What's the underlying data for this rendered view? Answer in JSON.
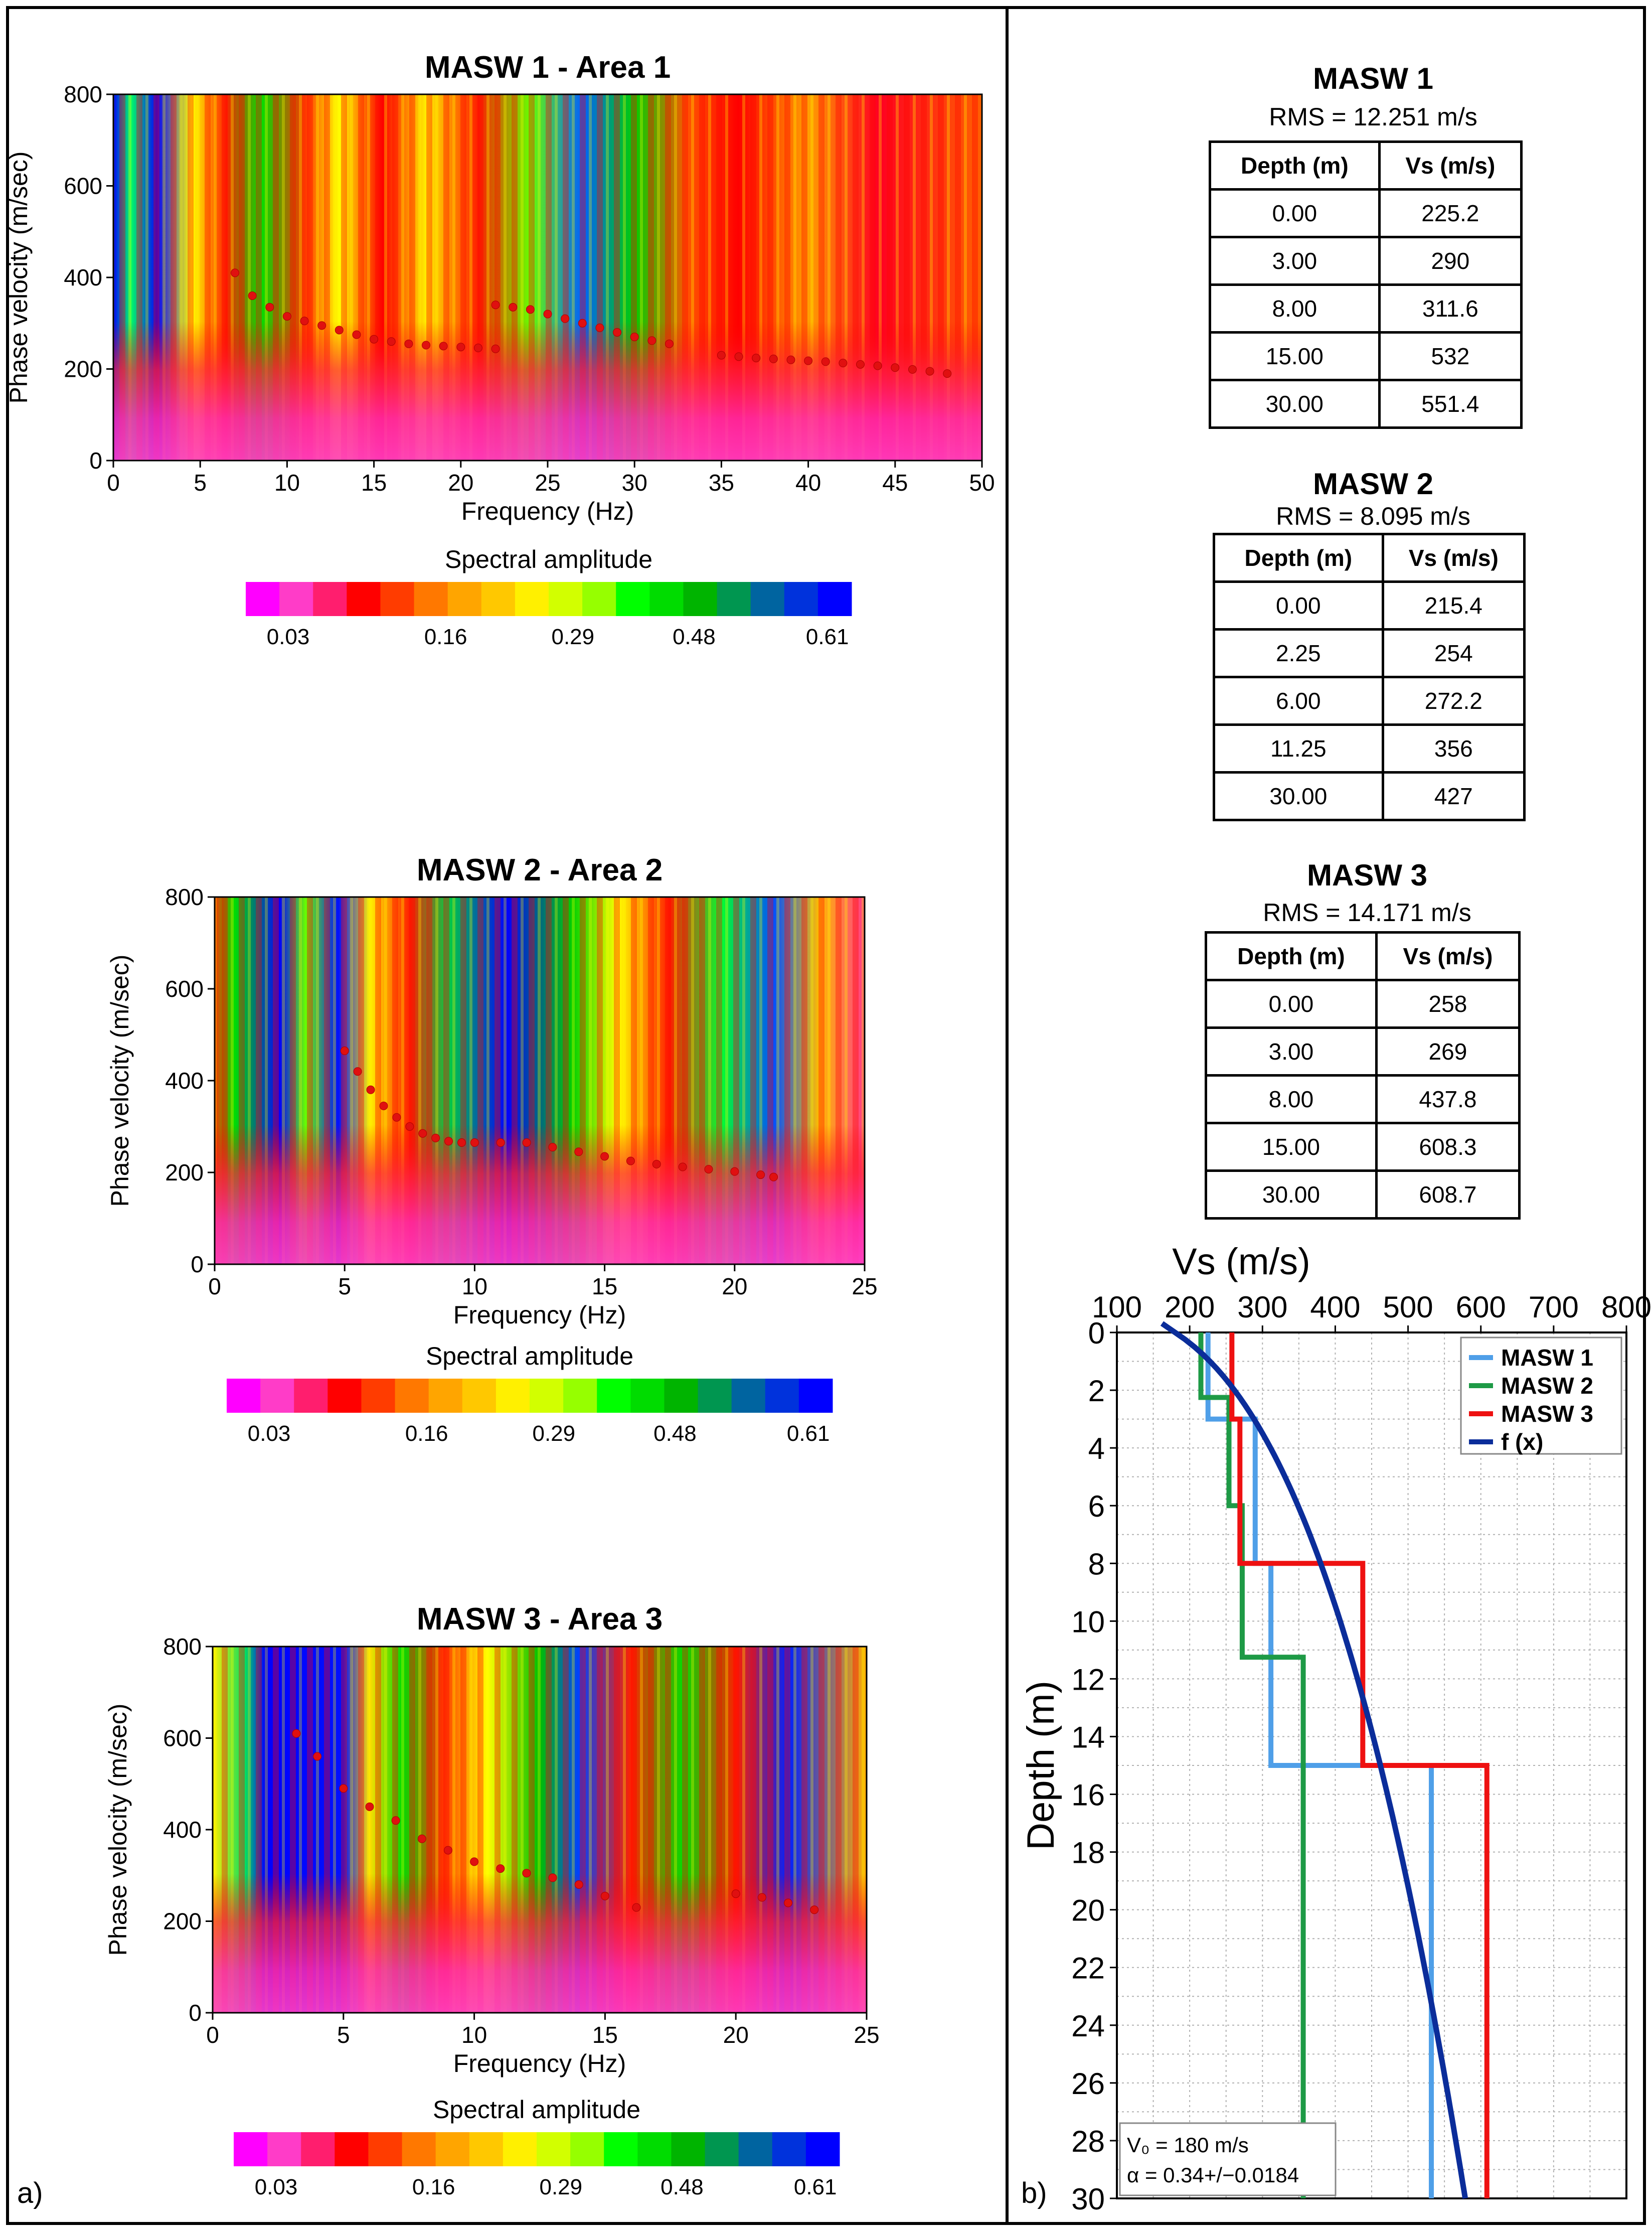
{
  "panel_labels": {
    "a": "a)",
    "b": "b)"
  },
  "colorbar": {
    "title": "Spectral amplitude",
    "tick_labels": [
      "0.03",
      "0.16",
      "0.29",
      "0.48",
      "0.61"
    ],
    "colors": [
      "#ff00ff",
      "#ff3cc8",
      "#ff1e6e",
      "#ff0000",
      "#ff3c00",
      "#ff7800",
      "#ffa500",
      "#ffc800",
      "#fff000",
      "#d2ff00",
      "#96ff00",
      "#00ff00",
      "#00dc00",
      "#00b400",
      "#009650",
      "#0064a0",
      "#0032dc",
      "#0000ff"
    ]
  },
  "tables": [
    {
      "title": "MASW 1",
      "rms": "RMS = 12.251 m/s",
      "headers": [
        "Depth (m)",
        "Vs (m/s)"
      ],
      "rows": [
        [
          "0.00",
          "225.2"
        ],
        [
          "3.00",
          "290"
        ],
        [
          "8.00",
          "311.6"
        ],
        [
          "15.00",
          "532"
        ],
        [
          "30.00",
          "551.4"
        ]
      ]
    },
    {
      "title": "MASW 2",
      "rms": "RMS = 8.095 m/s",
      "headers": [
        "Depth (m)",
        "Vs (m/s)"
      ],
      "rows": [
        [
          "0.00",
          "215.4"
        ],
        [
          "2.25",
          "254"
        ],
        [
          "6.00",
          "272.2"
        ],
        [
          "11.25",
          "356"
        ],
        [
          "30.00",
          "427"
        ]
      ]
    },
    {
      "title": "MASW 3",
      "rms": "RMS = 14.171 m/s",
      "headers": [
        "Depth (m)",
        "Vs (m/s)"
      ],
      "rows": [
        [
          "0.00",
          "258"
        ],
        [
          "3.00",
          "269"
        ],
        [
          "8.00",
          "437.8"
        ],
        [
          "15.00",
          "608.3"
        ],
        [
          "30.00",
          "608.7"
        ]
      ]
    }
  ],
  "chart_data": [
    {
      "type": "heatmap",
      "title": "MASW 1 - Area 1",
      "xlabel": "Frequency (Hz)",
      "ylabel": "Phase velocity (m/sec)",
      "xlim": [
        0,
        50
      ],
      "ylim": [
        0,
        800
      ],
      "xticks": [
        0,
        5,
        10,
        15,
        20,
        25,
        30,
        35,
        40,
        45,
        50
      ],
      "yticks": [
        0,
        200,
        400,
        600,
        800
      ],
      "picked_curve": [
        {
          "x": [
            7,
            8,
            9,
            10,
            11,
            12,
            13,
            14,
            15,
            16,
            17,
            18,
            19,
            20,
            21,
            22
          ],
          "y": [
            410,
            360,
            335,
            315,
            305,
            295,
            285,
            275,
            265,
            260,
            255,
            252,
            250,
            248,
            246,
            244
          ]
        },
        {
          "x": [
            22,
            23,
            24,
            25,
            26,
            27,
            28,
            29,
            30,
            31,
            32
          ],
          "y": [
            340,
            335,
            330,
            320,
            310,
            300,
            290,
            280,
            270,
            262,
            255
          ]
        },
        {
          "x": [
            35,
            36,
            37,
            38,
            39,
            40,
            41,
            42,
            43,
            44,
            45,
            46,
            47,
            48
          ],
          "y": [
            230,
            227,
            224,
            222,
            220,
            218,
            216,
            213,
            210,
            207,
            203,
            199,
            195,
            190
          ]
        }
      ]
    },
    {
      "type": "heatmap",
      "title": "MASW 2 - Area 2",
      "xlabel": "Frequency (Hz)",
      "ylabel": "Phase velocity (m/sec)",
      "xlim": [
        0,
        25
      ],
      "ylim": [
        0,
        800
      ],
      "xticks": [
        0,
        5,
        10,
        15,
        20,
        25
      ],
      "yticks": [
        0,
        200,
        400,
        600,
        800
      ],
      "picked_curve": [
        {
          "x": [
            5,
            5.5,
            6,
            6.5,
            7,
            7.5,
            8,
            8.5,
            9,
            9.5,
            10,
            11,
            12,
            13,
            14,
            15,
            16,
            17,
            18,
            19,
            20,
            21,
            21.5
          ],
          "y": [
            465,
            420,
            380,
            345,
            320,
            300,
            285,
            275,
            268,
            265,
            265,
            265,
            265,
            255,
            245,
            235,
            225,
            218,
            212,
            207,
            202,
            195,
            190
          ]
        }
      ]
    },
    {
      "type": "heatmap",
      "title": "MASW 3 - Area 3",
      "xlabel": "Frequency (Hz)",
      "ylabel": "Phase velocity (m/sec)",
      "xlim": [
        0,
        25
      ],
      "ylim": [
        0,
        800
      ],
      "xticks": [
        0,
        5,
        10,
        15,
        20,
        25
      ],
      "yticks": [
        0,
        200,
        400,
        600,
        800
      ],
      "picked_curve": [
        {
          "x": [
            3.2,
            4,
            5,
            6,
            7,
            8,
            9,
            10,
            11,
            12,
            13,
            14,
            15,
            16.2
          ],
          "y": [
            610,
            560,
            490,
            450,
            420,
            380,
            355,
            330,
            315,
            305,
            295,
            280,
            255,
            230
          ]
        },
        {
          "x": [
            20,
            21,
            22,
            23
          ],
          "y": [
            260,
            252,
            240,
            225
          ]
        }
      ]
    },
    {
      "type": "line",
      "title": "Vs (m/s)",
      "xlabel": "Vs (m/s)",
      "ylabel": "Depth (m)",
      "xlim": [
        100,
        800
      ],
      "ylim": [
        0,
        30
      ],
      "y_inverted": true,
      "xticks": [
        100,
        200,
        300,
        400,
        500,
        600,
        700,
        800
      ],
      "yticks": [
        0,
        2,
        4,
        6,
        8,
        10,
        12,
        14,
        16,
        18,
        20,
        22,
        24,
        26,
        28,
        30
      ],
      "grid": true,
      "legend": "top-right",
      "series": [
        {
          "name": "MASW 1",
          "color": "#4f9fe8",
          "step": true,
          "depths": [
            0,
            3,
            8,
            15,
            30
          ],
          "vs": [
            225.2,
            290,
            311.6,
            532,
            551.4
          ]
        },
        {
          "name": "MASW 2",
          "color": "#1e9a46",
          "step": true,
          "depths": [
            0,
            2.25,
            6,
            11.25,
            30
          ],
          "vs": [
            215.4,
            254,
            272.2,
            356,
            427
          ]
        },
        {
          "name": "MASW 3",
          "color": "#ee1111",
          "step": true,
          "depths": [
            0,
            3,
            8,
            15,
            30
          ],
          "vs": [
            258,
            269,
            437.8,
            608.3,
            608.7
          ]
        },
        {
          "name": "f (x)",
          "color": "#0b2d9a",
          "function": "Vs = V0*(1+z)^alpha",
          "v0": 180,
          "alpha": 0.34
        }
      ],
      "annotations": [
        "V₀ = 180 m/s",
        "α = 0.34+/−0.0184"
      ]
    }
  ]
}
